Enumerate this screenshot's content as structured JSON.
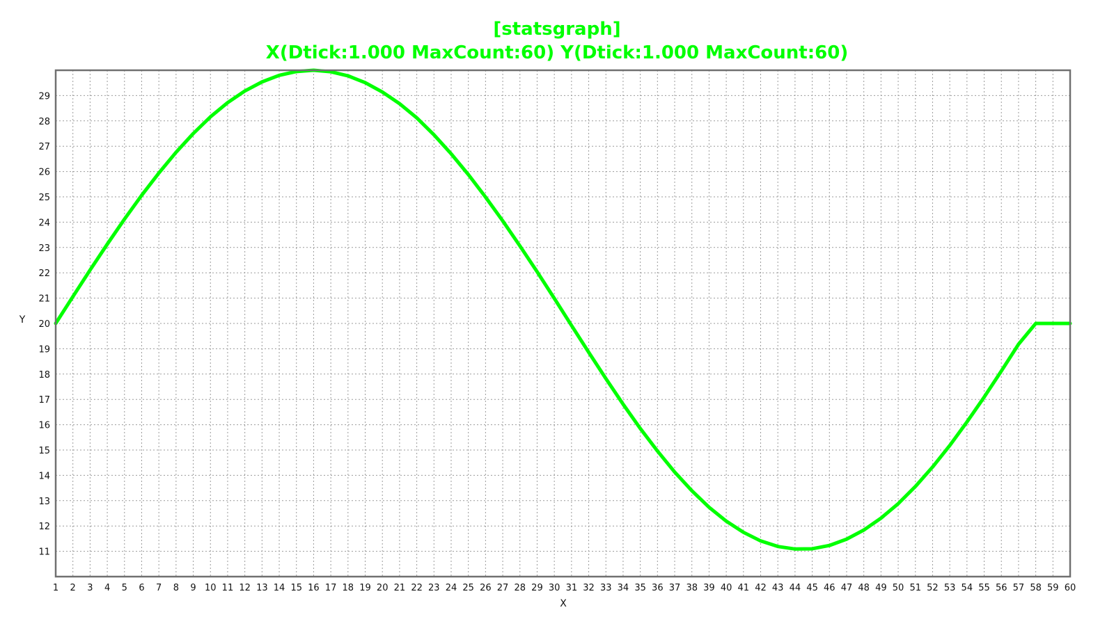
{
  "chart_data": {
    "type": "line",
    "title": "[statsgraph]",
    "subtitle": "X(Dtick:1.000 MaxCount:60) Y(Dtick:1.000 MaxCount:60)",
    "xlabel": "X",
    "ylabel": "Y",
    "xlim": [
      1,
      60
    ],
    "ylim": [
      10,
      30
    ],
    "x_ticks": [
      1,
      2,
      3,
      4,
      5,
      6,
      7,
      8,
      9,
      10,
      11,
      12,
      13,
      14,
      15,
      16,
      17,
      18,
      19,
      20,
      21,
      22,
      23,
      24,
      25,
      26,
      27,
      28,
      29,
      30,
      31,
      32,
      33,
      34,
      35,
      36,
      37,
      38,
      39,
      40,
      41,
      42,
      43,
      44,
      45,
      46,
      47,
      48,
      49,
      50,
      51,
      52,
      53,
      54,
      55,
      56,
      57,
      58,
      59,
      60
    ],
    "y_ticks": [
      11,
      12,
      13,
      14,
      15,
      16,
      17,
      18,
      19,
      20,
      21,
      22,
      23,
      24,
      25,
      26,
      27,
      28,
      29
    ],
    "grid": true,
    "line_color": "#00ff00",
    "series": [
      {
        "x": [
          1,
          2,
          3,
          4,
          5,
          6,
          7,
          8,
          9,
          10,
          11,
          12,
          13,
          14,
          15,
          16,
          17,
          18,
          19,
          20,
          21,
          22,
          23,
          24,
          25,
          26,
          27,
          28,
          29,
          30,
          31,
          32,
          33,
          34,
          35,
          36,
          37,
          38,
          39,
          40,
          41,
          42,
          43,
          44,
          45,
          46,
          47,
          48,
          49,
          50,
          51,
          52,
          53,
          54,
          55,
          56,
          57,
          58,
          59,
          60
        ],
        "y": [
          20.0,
          21.06,
          22.11,
          23.13,
          24.12,
          25.06,
          25.94,
          26.76,
          27.5,
          28.16,
          28.72,
          29.18,
          29.54,
          29.8,
          29.95,
          30.0,
          29.94,
          29.78,
          29.51,
          29.14,
          28.68,
          28.12,
          27.45,
          26.7,
          25.88,
          24.99,
          24.05,
          23.06,
          22.04,
          20.99,
          19.92,
          18.86,
          17.82,
          16.81,
          15.85,
          14.96,
          14.13,
          13.39,
          12.74,
          12.19,
          11.75,
          11.41,
          11.19,
          11.09,
          11.1,
          11.23,
          11.48,
          11.84,
          12.31,
          12.88,
          13.56,
          14.33,
          15.18,
          16.11,
          17.09,
          18.12,
          19.18,
          20.0,
          20.0,
          20.0
        ]
      }
    ]
  }
}
